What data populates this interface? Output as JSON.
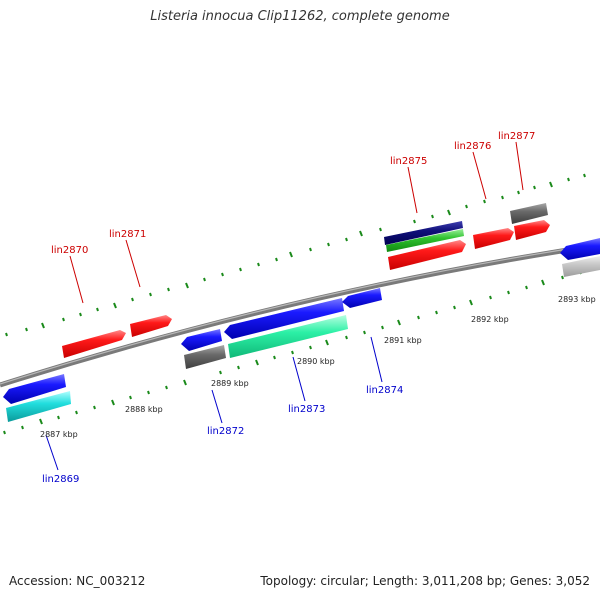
{
  "header": {
    "title": "Listeria innocua Clip11262, complete genome"
  },
  "footer": {
    "accession": "Accession: NC_003212",
    "summary": "Topology: circular; Length: 3,011,208 bp; Genes: 3,052"
  },
  "scale": {
    "kbp_labels": [
      "2887 kbp",
      "2888 kbp",
      "2889 kbp",
      "2890 kbp",
      "2891 kbp",
      "2892 kbp",
      "2893 kbp"
    ]
  },
  "genes": {
    "top": [
      {
        "name": "lin2870",
        "color": "#ff0000"
      },
      {
        "name": "lin2871",
        "color": "#ff0000"
      },
      {
        "name": "lin2875",
        "color": "#ff0000"
      },
      {
        "name": "lin2876",
        "color": "#ff0000"
      },
      {
        "name": "lin2877",
        "color": "#ff0000"
      }
    ],
    "bottom": [
      {
        "name": "lin2869",
        "color": "#0000ff"
      },
      {
        "name": "lin2872",
        "color": "#0000ff"
      },
      {
        "name": "lin2873",
        "color": "#0000ff"
      },
      {
        "name": "lin2874",
        "color": "#0000ff"
      }
    ]
  }
}
